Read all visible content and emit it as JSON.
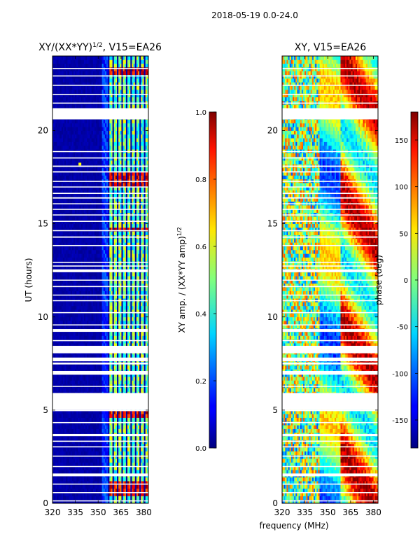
{
  "figure": {
    "suptitle": "2018-05-19 0.0-24.0",
    "shared_xlabel": "frequency (MHz)"
  },
  "chart_data": [
    {
      "type": "heatmap",
      "id": "amp",
      "title_main": "XY/(XX*YY)",
      "title_sup": "1/2",
      "title_tail": ", V15=EA26",
      "xlabel": "",
      "ylabel": "UT (hours)",
      "xlim": [
        320,
        383
      ],
      "ylim": [
        0,
        24
      ],
      "x_ticks": [
        320,
        335,
        350,
        365,
        380
      ],
      "y_ticks": [
        0,
        5,
        10,
        15,
        20
      ],
      "colorbar": {
        "label_main": "XY amp. / (XX*YY amp)",
        "label_sup": "1/2",
        "range": [
          0.0,
          1.0
        ],
        "ticks": [
          "0.0",
          "0.2",
          "0.4",
          "0.6",
          "0.8",
          "1.0"
        ],
        "colormap": "jet"
      },
      "active_bands_mhz": [
        [
          357,
          359
        ],
        [
          360,
          362
        ],
        [
          363,
          365
        ],
        [
          366,
          368
        ],
        [
          369,
          371
        ],
        [
          372,
          374
        ],
        [
          375,
          377
        ],
        [
          378,
          380
        ],
        [
          381,
          383
        ]
      ],
      "strong_rfi_hours": [
        [
          0.4,
          1.3
        ],
        [
          17.0,
          17.8
        ],
        [
          4.6,
          5.0
        ],
        [
          14.6,
          14.8
        ],
        [
          23.0,
          23.5
        ]
      ],
      "spike": {
        "x_mhz": 338,
        "ut_hours": 18.2
      }
    },
    {
      "type": "heatmap",
      "id": "phase",
      "title_main": "XY, V15=EA26",
      "xlabel": "",
      "ylabel": "",
      "xlim": [
        320,
        383
      ],
      "ylim": [
        0,
        24
      ],
      "x_ticks": [
        320,
        335,
        350,
        365,
        380
      ],
      "y_ticks": [
        0,
        5,
        10,
        15,
        20
      ],
      "colorbar": {
        "label": "phase (deg)",
        "range": [
          -180,
          180
        ],
        "ticks": [
          "-150",
          "-100",
          "-50",
          "0",
          "50",
          "100",
          "150"
        ],
        "colormap": "jet"
      }
    }
  ],
  "flagged_gaps_hours": [
    [
      0.1,
      0.16
    ],
    [
      0.55,
      0.6
    ],
    [
      1.0,
      1.06
    ],
    [
      1.45,
      1.6
    ],
    [
      1.95,
      2.0
    ],
    [
      2.5,
      2.56
    ],
    [
      3.0,
      3.06
    ],
    [
      3.3,
      3.36
    ],
    [
      3.6,
      3.72
    ],
    [
      4.3,
      4.36
    ],
    [
      4.95,
      5.0
    ],
    [
      5.0,
      5.92
    ],
    [
      6.25,
      6.3
    ],
    [
      6.9,
      7.1
    ],
    [
      7.45,
      7.55
    ],
    [
      7.62,
      7.82
    ],
    [
      8.05,
      8.45
    ],
    [
      8.7,
      8.76
    ],
    [
      9.2,
      9.35
    ],
    [
      9.55,
      9.6
    ],
    [
      10.2,
      10.26
    ],
    [
      10.85,
      10.9
    ],
    [
      11.15,
      11.2
    ],
    [
      11.6,
      11.66
    ],
    [
      11.95,
      12.0
    ],
    [
      12.4,
      12.55
    ],
    [
      12.7,
      12.76
    ],
    [
      12.9,
      12.96
    ],
    [
      13.8,
      13.86
    ],
    [
      14.25,
      14.32
    ],
    [
      14.6,
      14.66
    ],
    [
      15.1,
      15.16
    ],
    [
      15.45,
      15.5
    ],
    [
      15.75,
      15.8
    ],
    [
      16.05,
      16.1
    ],
    [
      16.35,
      16.42
    ],
    [
      16.6,
      16.66
    ],
    [
      16.95,
      17.0
    ],
    [
      17.25,
      17.3
    ],
    [
      17.75,
      17.82
    ],
    [
      18.05,
      18.12
    ],
    [
      18.5,
      18.56
    ],
    [
      18.85,
      18.9
    ],
    [
      20.6,
      21.2
    ],
    [
      21.45,
      21.5
    ],
    [
      21.9,
      21.96
    ],
    [
      22.4,
      22.46
    ],
    [
      22.9,
      22.96
    ],
    [
      23.3,
      23.36
    ]
  ]
}
